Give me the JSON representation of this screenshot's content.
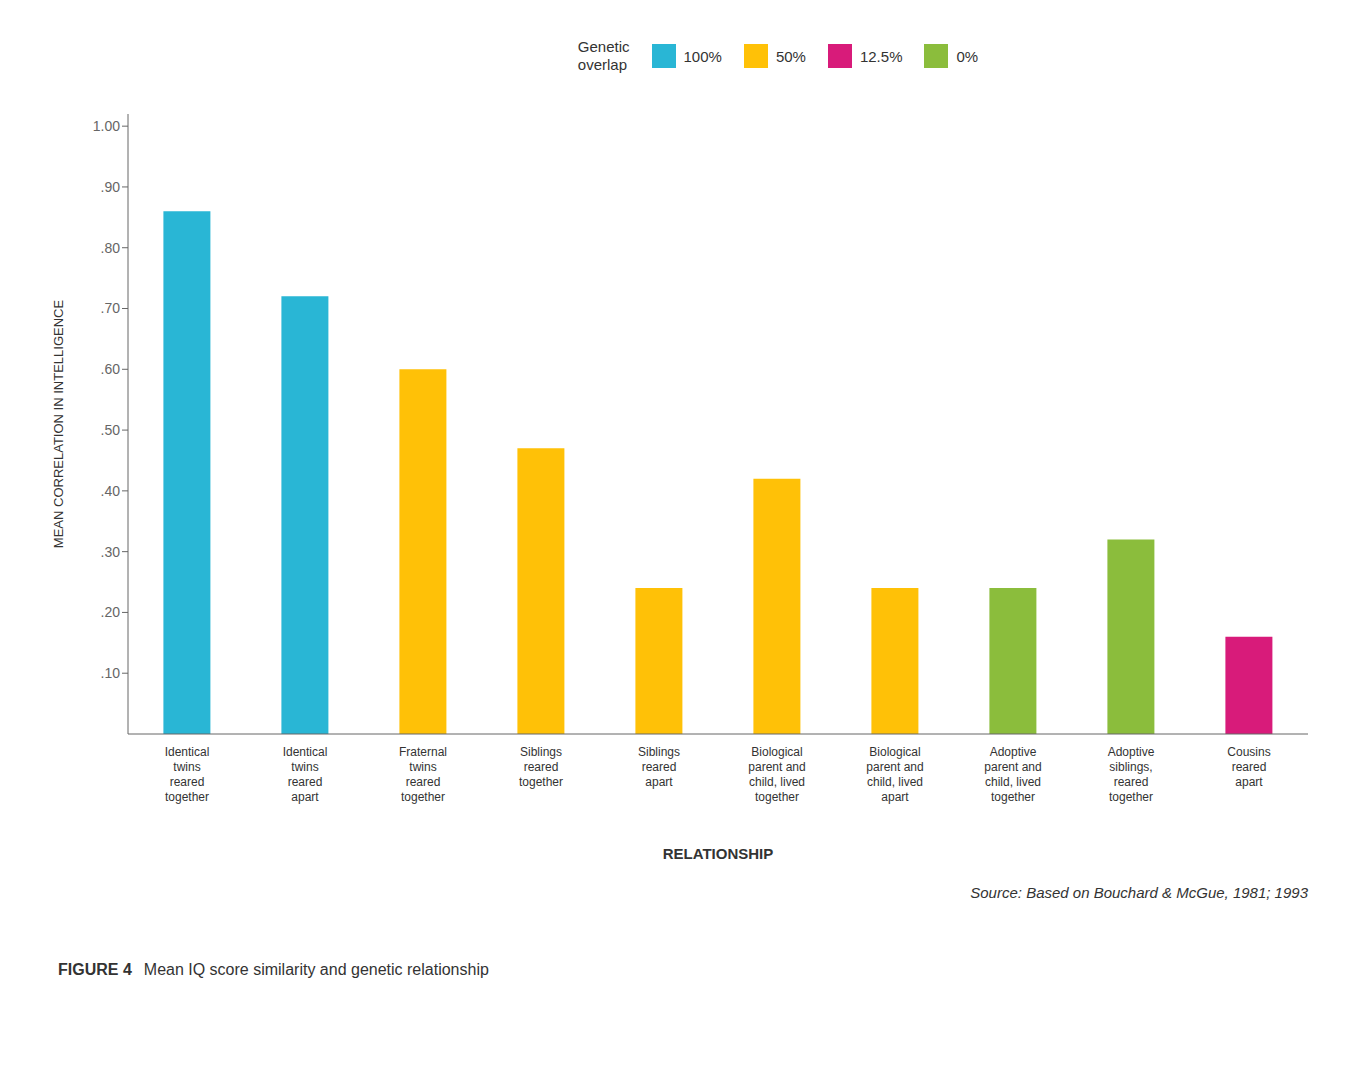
{
  "chart_data": {
    "type": "bar",
    "categories": [
      "Identical\ntwins\nreared\ntogether",
      "Identical\ntwins\nreared\napart",
      "Fraternal\ntwins\nreared\ntogether",
      "Siblings\nreared\ntogether",
      "Siblings\nreared\napart",
      "Biological\nparent and\nchild, lived\ntogether",
      "Biological\nparent and\nchild, lived\napart",
      "Adoptive\nparent and\nchild, lived\ntogether",
      "Adoptive\nsiblings,\nreared\ntogether",
      "Cousins\nreared\napart"
    ],
    "values": [
      0.86,
      0.72,
      0.6,
      0.47,
      0.24,
      0.42,
      0.24,
      0.24,
      0.32,
      0.16
    ],
    "colors": [
      "#29B6D5",
      "#29B6D5",
      "#FFC107",
      "#FFC107",
      "#FFC107",
      "#FFC107",
      "#FFC107",
      "#8BBD3C",
      "#8BBD3C",
      "#D81B7A"
    ],
    "ylabel": "MEAN CORRELATION IN INTELLIGENCE",
    "xlabel": "RELATIONSHIP",
    "ylim": [
      0,
      1.02
    ],
    "yticks": [
      {
        "value": 0.1,
        "label": ".10"
      },
      {
        "value": 0.2,
        "label": ".20"
      },
      {
        "value": 0.3,
        "label": ".30"
      },
      {
        "value": 0.4,
        "label": ".40"
      },
      {
        "value": 0.5,
        "label": ".50"
      },
      {
        "value": 0.6,
        "label": ".60"
      },
      {
        "value": 0.7,
        "label": ".70"
      },
      {
        "value": 0.8,
        "label": ".80"
      },
      {
        "value": 0.9,
        "label": ".90"
      },
      {
        "value": 1,
        "label": "1.00"
      }
    ],
    "grid": false,
    "legend": "top",
    "legend_title": "Genetic\noverlap",
    "legend_entries": [
      {
        "name": "100%",
        "color": "#29B6D5"
      },
      {
        "name": "50%",
        "color": "#FFC107"
      },
      {
        "name": "12.5%",
        "color": "#D81B7A"
      },
      {
        "name": "0%",
        "color": "#8BBD3C"
      }
    ],
    "source": "Source: Based on Bouchard & McGue, 1981; 1993",
    "caption_bold": "FIGURE 4",
    "caption": "Mean IQ score similarity and genetic relationship"
  }
}
